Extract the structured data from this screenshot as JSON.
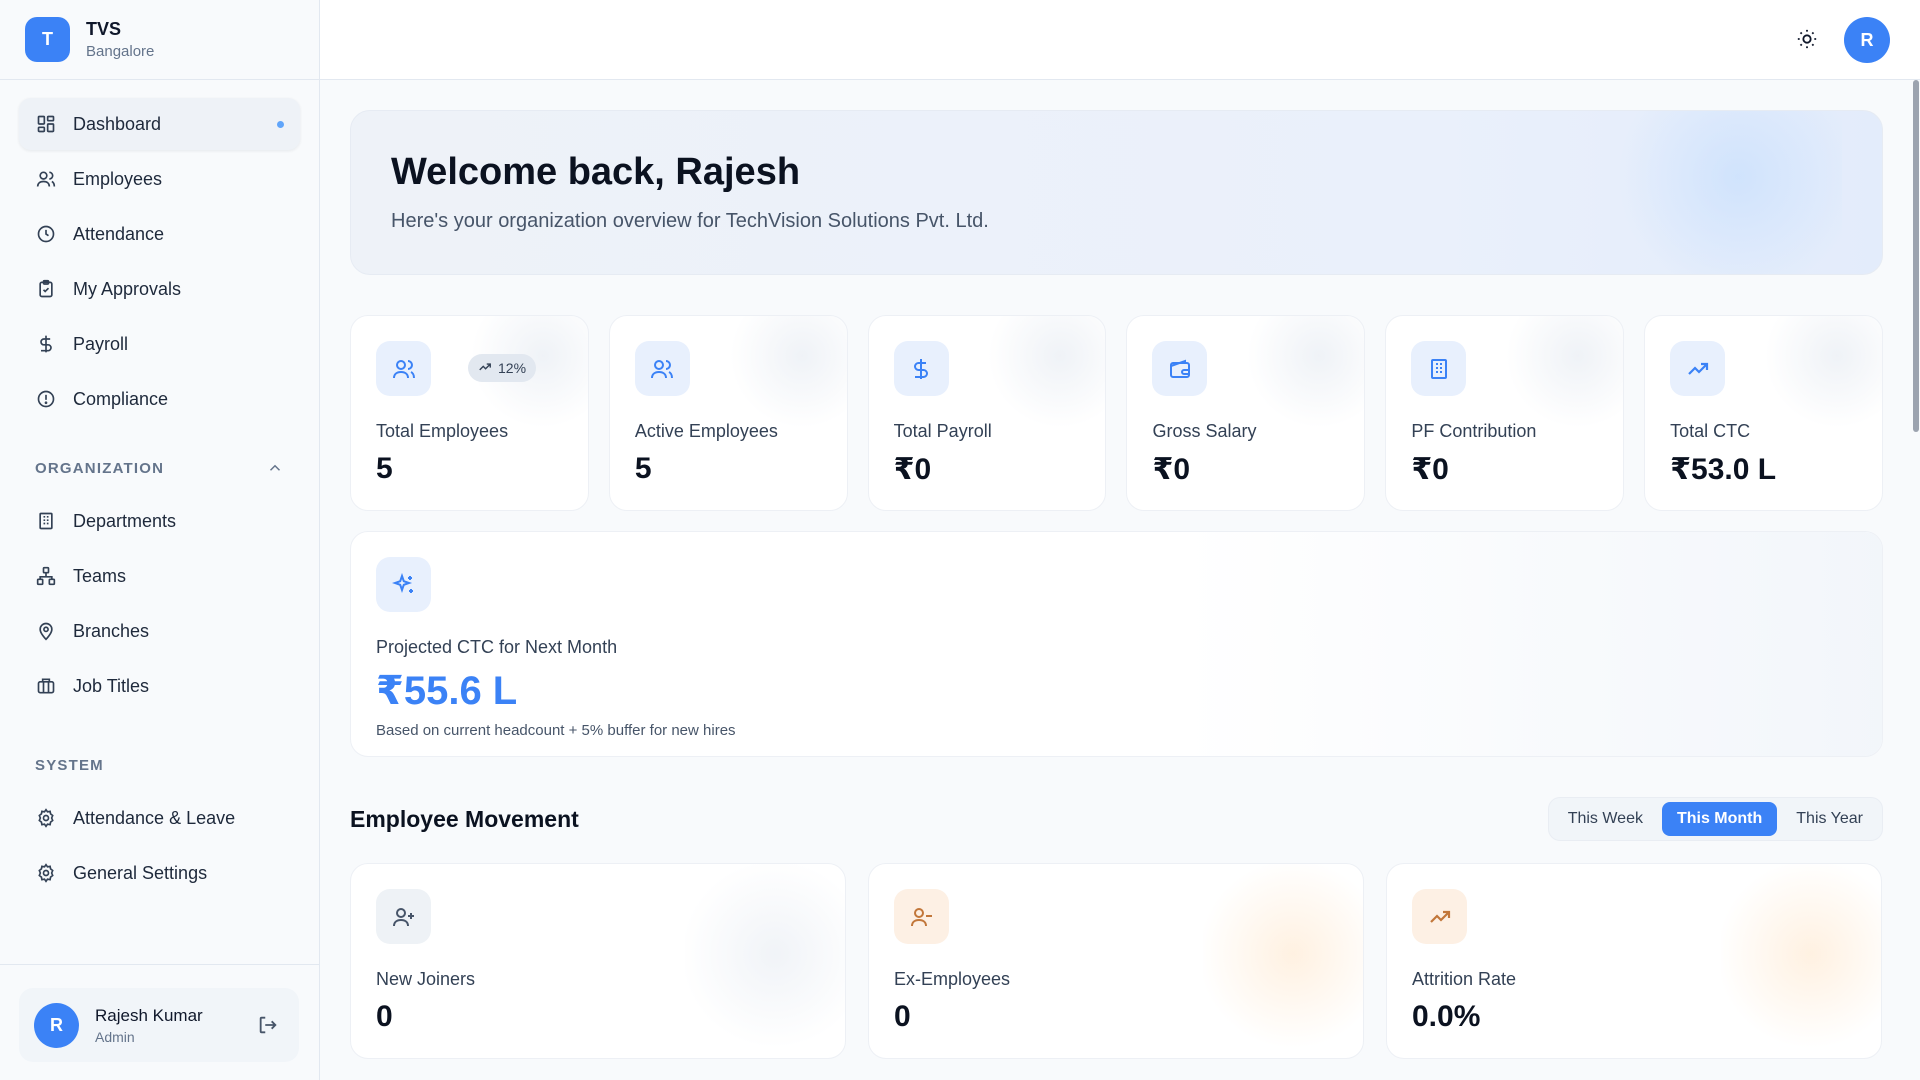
{
  "brand": {
    "initial": "T",
    "name": "TVS",
    "location": "Bangalore"
  },
  "nav": {
    "main": [
      {
        "label": "Dashboard",
        "icon": "dashboard-grid-icon",
        "active": true
      },
      {
        "label": "Employees",
        "icon": "users-icon"
      },
      {
        "label": "Attendance",
        "icon": "clock-icon"
      },
      {
        "label": "My Approvals",
        "icon": "clipboard-check-icon"
      },
      {
        "label": "Payroll",
        "icon": "dollar-icon"
      },
      {
        "label": "Compliance",
        "icon": "alert-circle-icon"
      }
    ],
    "organization_title": "ORGANIZATION",
    "organization": [
      {
        "label": "Departments",
        "icon": "building-icon"
      },
      {
        "label": "Teams",
        "icon": "network-icon"
      },
      {
        "label": "Branches",
        "icon": "map-pin-icon"
      },
      {
        "label": "Job Titles",
        "icon": "briefcase-icon"
      }
    ],
    "system_title": "SYSTEM",
    "system": [
      {
        "label": "Attendance & Leave",
        "icon": "settings-icon"
      },
      {
        "label": "General Settings",
        "icon": "settings-icon"
      }
    ]
  },
  "user": {
    "initial": "R",
    "name": "Rajesh Kumar",
    "role": "Admin"
  },
  "topbar": {
    "avatar_initial": "R"
  },
  "welcome": {
    "title": "Welcome back, Rajesh",
    "subtitle": "Here's your organization overview for TechVision Solutions Pvt. Ltd."
  },
  "stats": [
    {
      "label": "Total Employees",
      "value": "5",
      "badge": "12%",
      "icon": "users-icon"
    },
    {
      "label": "Active Employees",
      "value": "5",
      "icon": "users-icon"
    },
    {
      "label": "Total Payroll",
      "value": "₹0",
      "icon": "dollar-icon"
    },
    {
      "label": "Gross Salary",
      "value": "₹0",
      "icon": "wallet-icon"
    },
    {
      "label": "PF Contribution",
      "value": "₹0",
      "icon": "building-icon"
    },
    {
      "label": "Total CTC",
      "value": "₹53.0 L",
      "icon": "trending-up-icon"
    }
  ],
  "projected": {
    "label": "Projected CTC for Next Month",
    "value": "₹55.6 L",
    "note": "Based on current headcount + 5% buffer for new hires",
    "icon": "sparkles-icon"
  },
  "movement": {
    "title": "Employee Movement",
    "ranges": [
      "This Week",
      "This Month",
      "This Year"
    ],
    "selected_range": "This Month",
    "cards": [
      {
        "label": "New Joiners",
        "value": "0",
        "icon": "user-plus-icon"
      },
      {
        "label": "Ex-Employees",
        "value": "0",
        "icon": "user-minus-icon"
      },
      {
        "label": "Attrition Rate",
        "value": "0.0%",
        "icon": "trending-up-icon"
      }
    ]
  },
  "colors": {
    "accent": "#3b82f6",
    "orange_accent": "#c2773a"
  }
}
